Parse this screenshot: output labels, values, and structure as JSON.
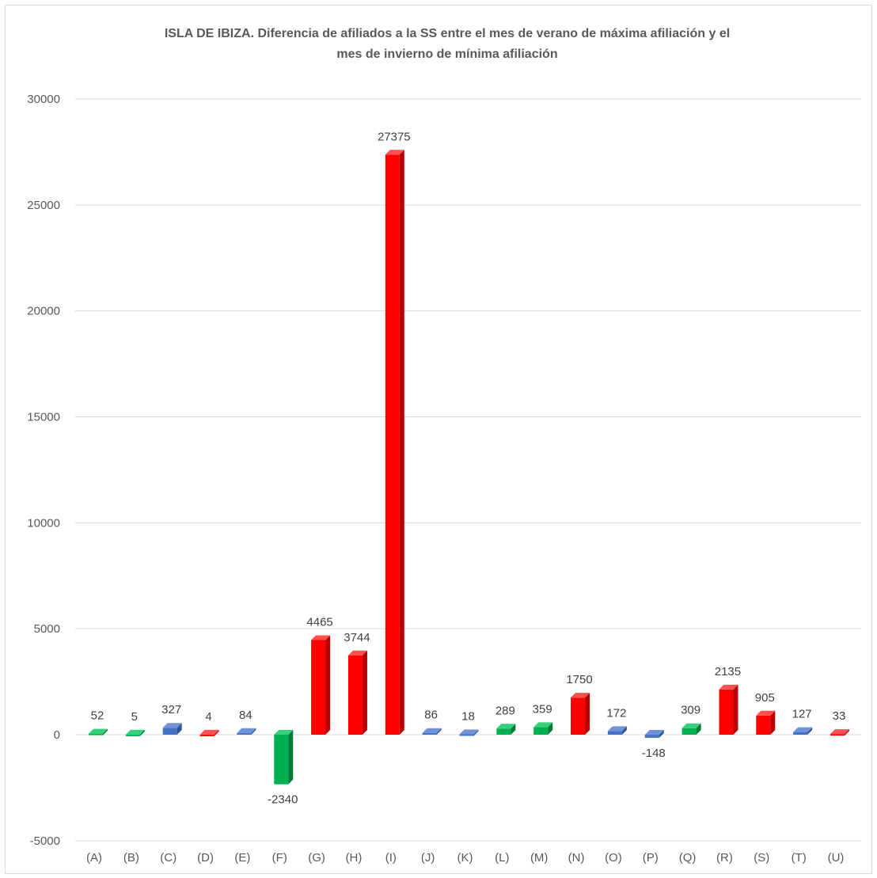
{
  "chart_data": {
    "type": "bar",
    "title_line1": "ISLA DE IBIZA. Diferencia de afiliados a la SS entre el mes de verano de máxima afiliación y el",
    "title_line2": "mes de invierno de mínima afiliación",
    "categories": [
      "(A)",
      "(B)",
      "(C)",
      "(D)",
      "(E)",
      "(F)",
      "(G)",
      "(H)",
      "(I)",
      "(J)",
      "(K)",
      "(L)",
      "(M)",
      "(N)",
      "(O)",
      "(P)",
      "(Q)",
      "(R)",
      "(S)",
      "(T)",
      "(U)"
    ],
    "values": [
      52,
      5,
      327,
      4,
      84,
      -2340,
      4465,
      3744,
      27375,
      86,
      18,
      289,
      359,
      1750,
      172,
      -148,
      309,
      2135,
      905,
      127,
      33
    ],
    "bar_colors": [
      "green",
      "green",
      "blue",
      "red",
      "blue",
      "green",
      "red",
      "red",
      "red",
      "blue",
      "blue",
      "green",
      "green",
      "red",
      "blue",
      "blue",
      "green",
      "red",
      "red",
      "blue",
      "red"
    ],
    "palette": {
      "green": {
        "front": "#00b050",
        "side": "#007a38",
        "top": "#33d17a"
      },
      "blue": {
        "front": "#4472c4",
        "side": "#2f5597",
        "top": "#6f93d6"
      },
      "red": {
        "front": "#ff0000",
        "side": "#b80000",
        "top": "#ff5050"
      }
    },
    "y_ticks": [
      "30000",
      "25000",
      "20000",
      "15000",
      "10000",
      "5000",
      "0",
      "-5000"
    ],
    "ylim": [
      -5000,
      30000
    ],
    "grid": true,
    "legend": "none",
    "xlabel": "",
    "ylabel": ""
  }
}
